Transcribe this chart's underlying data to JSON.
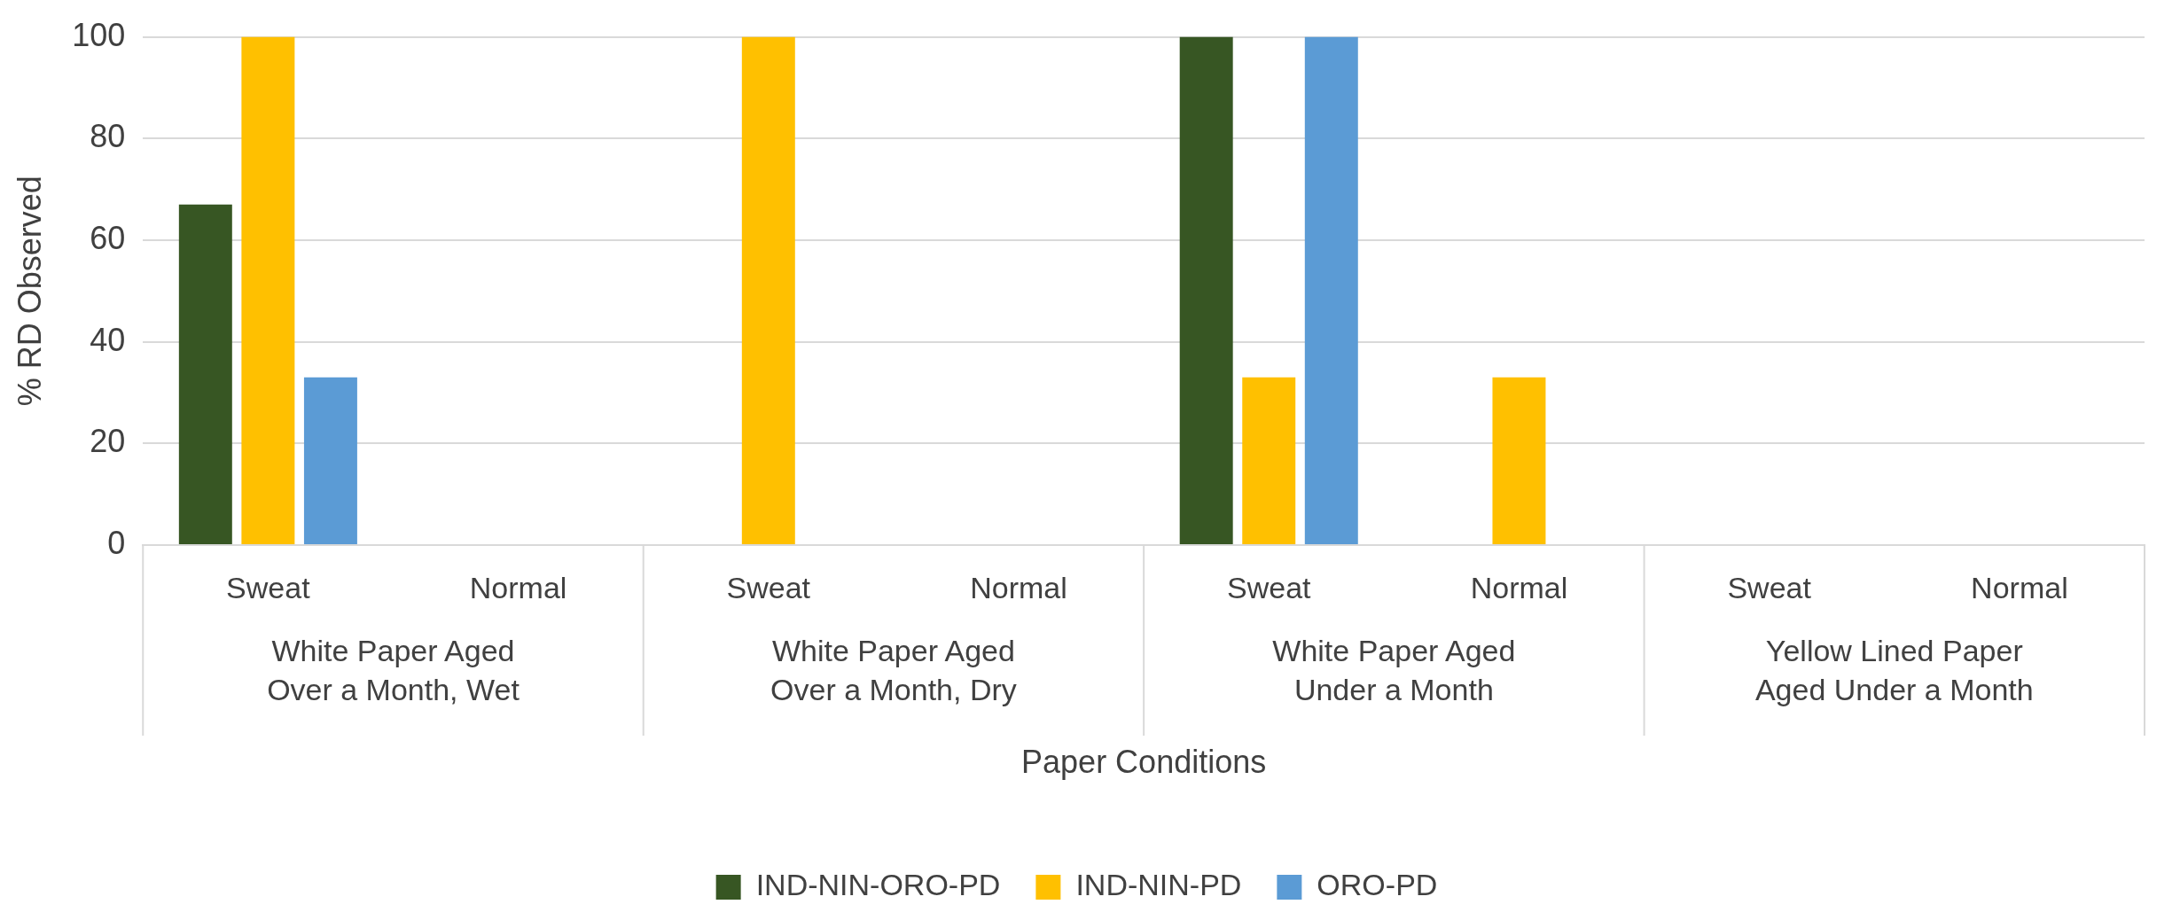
{
  "chart_data": {
    "type": "bar",
    "xlabel": "Paper Conditions",
    "ylabel": "% RD Observed",
    "categories": [
      "Sweat",
      "Normal",
      "Sweat",
      "Normal",
      "Sweat",
      "Normal",
      "Sweat",
      "Normal"
    ],
    "annotations": [
      "White Paper Aged Over a Month, Wet",
      "White Paper Aged Over a Month, Dry",
      "White Paper Aged Under a Month",
      "Yellow Lined Paper Aged Under a Month"
    ],
    "series": [
      {
        "name": "IND-NIN-ORO-PD",
        "color": "#375623",
        "values": [
          67,
          0,
          0,
          0,
          100,
          0,
          0,
          0
        ]
      },
      {
        "name": "IND-NIN-PD",
        "color": "#ffc000",
        "values": [
          100,
          0,
          100,
          0,
          33,
          33,
          0,
          0
        ]
      },
      {
        "name": "ORO-PD",
        "color": "#5b9bd5",
        "values": [
          33,
          0,
          0,
          0,
          100,
          0,
          0,
          0
        ]
      }
    ],
    "ylim": [
      0,
      100
    ],
    "yticks": [
      0,
      20,
      40,
      60,
      80,
      100
    ],
    "grid": "y",
    "legend": "bottom"
  }
}
